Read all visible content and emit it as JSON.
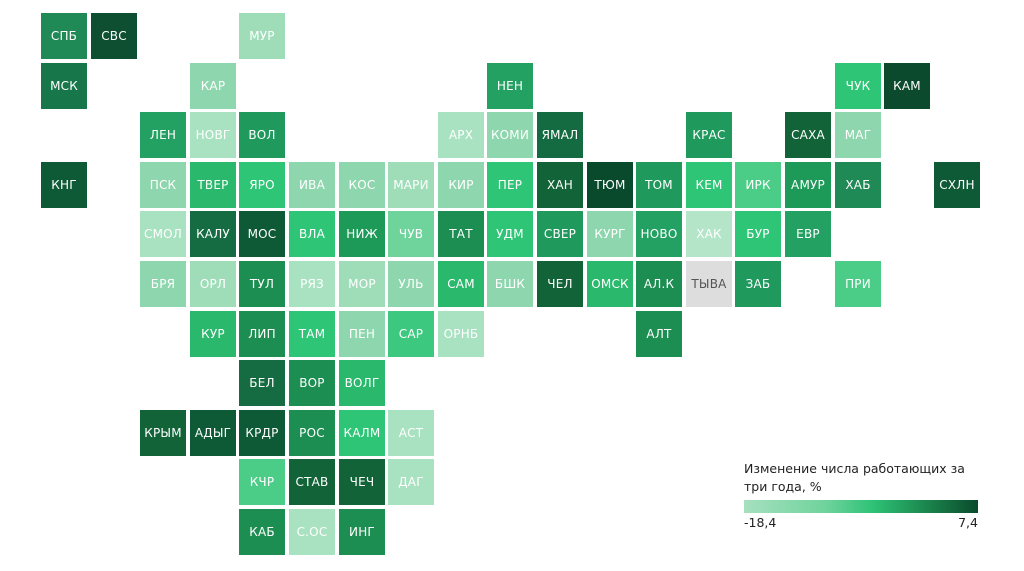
{
  "legend": {
    "title": "Изменение числа работающих за три года, %",
    "min_label": "-18,4",
    "max_label": "7,4",
    "min_color": "#a6e0bf",
    "max_color": "#0a4a2c"
  },
  "no_data_color": "#dddddd",
  "regions": [
    {
      "label": "СПБ",
      "row": 0,
      "col": 0,
      "color": "#1f8a55"
    },
    {
      "label": "СВС",
      "row": 0,
      "col": 1,
      "color": "#0d4f30"
    },
    {
      "label": "МУР",
      "row": 0,
      "col": 4,
      "color": "#9fddb9"
    },
    {
      "label": "МСК",
      "row": 1,
      "col": 0,
      "color": "#17774a"
    },
    {
      "label": "КАР",
      "row": 1,
      "col": 3,
      "color": "#8ed6ad"
    },
    {
      "label": "НЕН",
      "row": 1,
      "col": 9,
      "color": "#22a162"
    },
    {
      "label": "ЧУК",
      "row": 1,
      "col": 16,
      "color": "#2fc577"
    },
    {
      "label": "КАМ",
      "row": 1,
      "col": 17,
      "color": "#0b4a2d"
    },
    {
      "label": "ЛЕН",
      "row": 2,
      "col": 2,
      "color": "#22a162"
    },
    {
      "label": "НОВГ",
      "row": 2,
      "col": 3,
      "color": "#a8e2c1"
    },
    {
      "label": "ВОЛ",
      "row": 2,
      "col": 4,
      "color": "#1f9a5c"
    },
    {
      "label": "АРХ",
      "row": 2,
      "col": 8,
      "color": "#a8e2c1"
    },
    {
      "label": "КОМИ",
      "row": 2,
      "col": 9,
      "color": "#8ed6ad"
    },
    {
      "label": "ЯМАЛ",
      "row": 2,
      "col": 10,
      "color": "#146b41"
    },
    {
      "label": "КРАС",
      "row": 2,
      "col": 13,
      "color": "#1f9a5c"
    },
    {
      "label": "САХА",
      "row": 2,
      "col": 15,
      "color": "#126438"
    },
    {
      "label": "МАГ",
      "row": 2,
      "col": 16,
      "color": "#8ed6ad"
    },
    {
      "label": "КНГ",
      "row": 3,
      "col": 0,
      "color": "#0f5a36"
    },
    {
      "label": "ПСК",
      "row": 3,
      "col": 2,
      "color": "#8ed6ad"
    },
    {
      "label": "ТВЕР",
      "row": 3,
      "col": 3,
      "color": "#2ab86c"
    },
    {
      "label": "ЯРО",
      "row": 3,
      "col": 4,
      "color": "#2fc577"
    },
    {
      "label": "ИВА",
      "row": 3,
      "col": 5,
      "color": "#8ed6ad"
    },
    {
      "label": "КОС",
      "row": 3,
      "col": 6,
      "color": "#8ed6ad"
    },
    {
      "label": "МАРИ",
      "row": 3,
      "col": 7,
      "color": "#9fddb9"
    },
    {
      "label": "КИР",
      "row": 3,
      "col": 8,
      "color": "#8ed6ad"
    },
    {
      "label": "ПЕР",
      "row": 3,
      "col": 9,
      "color": "#2fc577"
    },
    {
      "label": "ХАН",
      "row": 3,
      "col": 10,
      "color": "#126438"
    },
    {
      "label": "ТЮМ",
      "row": 3,
      "col": 11,
      "color": "#0a4a2c"
    },
    {
      "label": "ТОМ",
      "row": 3,
      "col": 12,
      "color": "#1f9a5c"
    },
    {
      "label": "КЕМ",
      "row": 3,
      "col": 13,
      "color": "#2fc577"
    },
    {
      "label": "ИРК",
      "row": 3,
      "col": 14,
      "color": "#4bcc87"
    },
    {
      "label": "АМУР",
      "row": 3,
      "col": 15,
      "color": "#1d9a58"
    },
    {
      "label": "ХАБ",
      "row": 3,
      "col": 16,
      "color": "#1f8a55"
    },
    {
      "label": "СХЛН",
      "row": 3,
      "col": 18,
      "color": "#0f5a36"
    },
    {
      "label": "СМОЛ",
      "row": 4,
      "col": 2,
      "color": "#a8e2c1"
    },
    {
      "label": "КАЛУ",
      "row": 4,
      "col": 3,
      "color": "#156c42"
    },
    {
      "label": "МОС",
      "row": 4,
      "col": 4,
      "color": "#0f5a36"
    },
    {
      "label": "ВЛА",
      "row": 4,
      "col": 5,
      "color": "#2fc577"
    },
    {
      "label": "НИЖ",
      "row": 4,
      "col": 6,
      "color": "#1d9a58"
    },
    {
      "label": "ЧУВ",
      "row": 4,
      "col": 7,
      "color": "#6fd39c"
    },
    {
      "label": "ТАТ",
      "row": 4,
      "col": 8,
      "color": "#1d8e52"
    },
    {
      "label": "УДМ",
      "row": 4,
      "col": 9,
      "color": "#2fc577"
    },
    {
      "label": "СВЕР",
      "row": 4,
      "col": 10,
      "color": "#1f9a5c"
    },
    {
      "label": "КУРГ",
      "row": 4,
      "col": 11,
      "color": "#8ed6ad"
    },
    {
      "label": "НОВО",
      "row": 4,
      "col": 12,
      "color": "#22a162"
    },
    {
      "label": "ХАК",
      "row": 4,
      "col": 13,
      "color": "#b4e5c8"
    },
    {
      "label": "БУР",
      "row": 4,
      "col": 14,
      "color": "#2fc577"
    },
    {
      "label": "ЕВР",
      "row": 4,
      "col": 15,
      "color": "#22a162"
    },
    {
      "label": "БРЯ",
      "row": 5,
      "col": 2,
      "color": "#8ed6ad"
    },
    {
      "label": "ОРЛ",
      "row": 5,
      "col": 3,
      "color": "#9fddb9"
    },
    {
      "label": "ТУЛ",
      "row": 5,
      "col": 4,
      "color": "#1d8e52"
    },
    {
      "label": "РЯЗ",
      "row": 5,
      "col": 5,
      "color": "#a8e2c1"
    },
    {
      "label": "МОР",
      "row": 5,
      "col": 6,
      "color": "#9fddb9"
    },
    {
      "label": "УЛЬ",
      "row": 5,
      "col": 7,
      "color": "#8ed6ad"
    },
    {
      "label": "САМ",
      "row": 5,
      "col": 8,
      "color": "#2ab86c"
    },
    {
      "label": "БШК",
      "row": 5,
      "col": 9,
      "color": "#8ed6ad"
    },
    {
      "label": "ЧЕЛ",
      "row": 5,
      "col": 10,
      "color": "#126438"
    },
    {
      "label": "ОМСК",
      "row": 5,
      "col": 11,
      "color": "#2ab86c"
    },
    {
      "label": "АЛ.К",
      "row": 5,
      "col": 12,
      "color": "#1d8e52"
    },
    {
      "label": "ТЫВА",
      "row": 5,
      "col": 13,
      "color": "#dddddd",
      "dark_text": true
    },
    {
      "label": "ЗАБ",
      "row": 5,
      "col": 14,
      "color": "#1f9a5c"
    },
    {
      "label": "ПРИ",
      "row": 5,
      "col": 16,
      "color": "#4bcc87"
    },
    {
      "label": "КУР",
      "row": 6,
      "col": 3,
      "color": "#2ab86c"
    },
    {
      "label": "ЛИП",
      "row": 6,
      "col": 4,
      "color": "#1d8e52"
    },
    {
      "label": "ТАМ",
      "row": 6,
      "col": 5,
      "color": "#2fc577"
    },
    {
      "label": "ПЕН",
      "row": 6,
      "col": 6,
      "color": "#8ed6ad"
    },
    {
      "label": "САР",
      "row": 6,
      "col": 7,
      "color": "#3cc97f"
    },
    {
      "label": "ОРНБ",
      "row": 6,
      "col": 8,
      "color": "#a8e2c1"
    },
    {
      "label": "АЛТ",
      "row": 6,
      "col": 12,
      "color": "#1d8e52"
    },
    {
      "label": "БЕЛ",
      "row": 7,
      "col": 4,
      "color": "#156c42"
    },
    {
      "label": "ВОР",
      "row": 7,
      "col": 5,
      "color": "#1d8e52"
    },
    {
      "label": "ВОЛГ",
      "row": 7,
      "col": 6,
      "color": "#2ab86c"
    },
    {
      "label": "КРЫМ",
      "row": 8,
      "col": 2,
      "color": "#126438"
    },
    {
      "label": "АДЫГ",
      "row": 8,
      "col": 3,
      "color": "#0f5a36"
    },
    {
      "label": "КРДР",
      "row": 8,
      "col": 4,
      "color": "#0f5a36"
    },
    {
      "label": "РОС",
      "row": 8,
      "col": 5,
      "color": "#1d8e52"
    },
    {
      "label": "КАЛМ",
      "row": 8,
      "col": 6,
      "color": "#2fc577"
    },
    {
      "label": "АСТ",
      "row": 8,
      "col": 7,
      "color": "#a8e2c1"
    },
    {
      "label": "КЧР",
      "row": 9,
      "col": 4,
      "color": "#4bcc87"
    },
    {
      "label": "СТАВ",
      "row": 9,
      "col": 5,
      "color": "#126438"
    },
    {
      "label": "ЧЕЧ",
      "row": 9,
      "col": 6,
      "color": "#126438"
    },
    {
      "label": "ДАГ",
      "row": 9,
      "col": 7,
      "color": "#a8e2c1"
    },
    {
      "label": "КАБ",
      "row": 10,
      "col": 4,
      "color": "#1d8e52"
    },
    {
      "label": "С.ОС",
      "row": 10,
      "col": 5,
      "color": "#a8e2c1"
    },
    {
      "label": "ИНГ",
      "row": 10,
      "col": 6,
      "color": "#1d8e52"
    }
  ]
}
